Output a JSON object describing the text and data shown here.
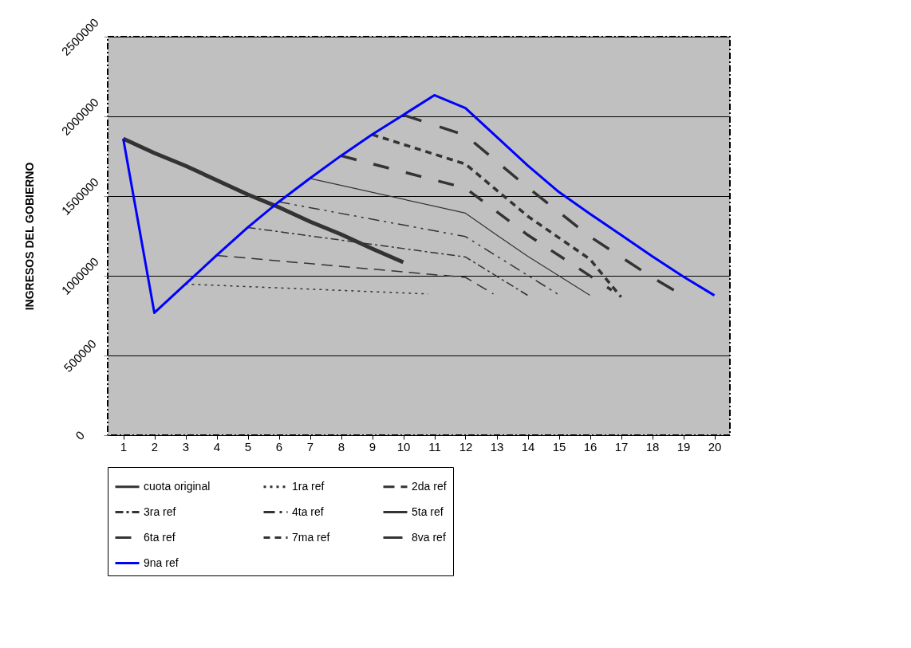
{
  "chart_data": {
    "type": "line",
    "ylabel": "INGRESOS DEL GOBIERNO",
    "xlim": [
      0.5,
      20.5
    ],
    "xticks": [
      1,
      2,
      3,
      4,
      5,
      6,
      7,
      8,
      9,
      10,
      11,
      12,
      13,
      14,
      15,
      16,
      17,
      18,
      19,
      20
    ],
    "ylim": [
      0,
      2500000
    ],
    "yticks": [
      0,
      500000,
      1000000,
      1500000,
      2000000,
      2500000
    ],
    "grid": "y",
    "legend": "bottom",
    "series": [
      {
        "name": "cuota original",
        "color": "#333333",
        "line_style": "solid",
        "x": [
          1,
          2,
          3,
          4,
          5,
          6,
          7,
          8,
          9,
          10
        ],
        "values": [
          1860000,
          1770000,
          1690000,
          1600000,
          1510000,
          1430000,
          1340000,
          1260000,
          1170000,
          1085000
        ]
      },
      {
        "name": "1ra ref",
        "color": "#333333",
        "line_style": "dotted",
        "x": [
          3,
          10.8
        ],
        "values": [
          948000,
          886000
        ]
      },
      {
        "name": "2da ref",
        "color": "#333333",
        "line_style": "dashed",
        "x": [
          4,
          12,
          12.9
        ],
        "values": [
          1128000,
          990000,
          886000
        ]
      },
      {
        "name": "3ra ref",
        "color": "#333333",
        "line_style": "dashed",
        "x": [
          5,
          12,
          14
        ],
        "values": [
          1303000,
          1118000,
          877000
        ]
      },
      {
        "name": "4ta ref",
        "color": "#333333",
        "line_style": "dashed",
        "x": [
          6,
          12,
          15
        ],
        "values": [
          1464000,
          1246000,
          881000
        ]
      },
      {
        "name": "5ta ref",
        "color": "#333333",
        "line_style": "solid",
        "x": [
          7,
          12,
          13,
          14,
          16
        ],
        "values": [
          1611000,
          1393000,
          1256000,
          1123000,
          877000
        ]
      },
      {
        "name": "6ta ref",
        "color": "#333333",
        "line_style": "dashed",
        "x": [
          8,
          12,
          14,
          16.7
        ],
        "values": [
          1753000,
          1550000,
          1256000,
          910000
        ]
      },
      {
        "name": "7ma ref",
        "color": "#333333",
        "line_style": "dashed",
        "x": [
          9,
          12,
          14,
          16,
          17
        ],
        "values": [
          1886000,
          1701000,
          1374000,
          1104000,
          867000
        ]
      },
      {
        "name": "8va ref",
        "color": "#333333",
        "line_style": "dashed",
        "x": [
          10,
          12,
          14,
          16,
          18,
          18.7
        ],
        "values": [
          2009000,
          1881000,
          1554000,
          1246000,
          990000,
          910000
        ]
      },
      {
        "name": "9na ref",
        "color": "#0000ff",
        "line_style": "solid",
        "x": [
          1,
          2,
          3,
          4,
          5,
          6,
          7,
          8,
          9,
          10,
          11,
          12,
          13,
          14,
          15,
          16,
          17,
          18,
          19,
          20
        ],
        "values": [
          1860000,
          768000,
          948000,
          1128000,
          1303000,
          1464000,
          1611000,
          1753000,
          1886000,
          2009000,
          2133000,
          2052000,
          1872000,
          1692000,
          1526000,
          1389000,
          1256000,
          1123000,
          995000,
          877000
        ]
      }
    ]
  }
}
